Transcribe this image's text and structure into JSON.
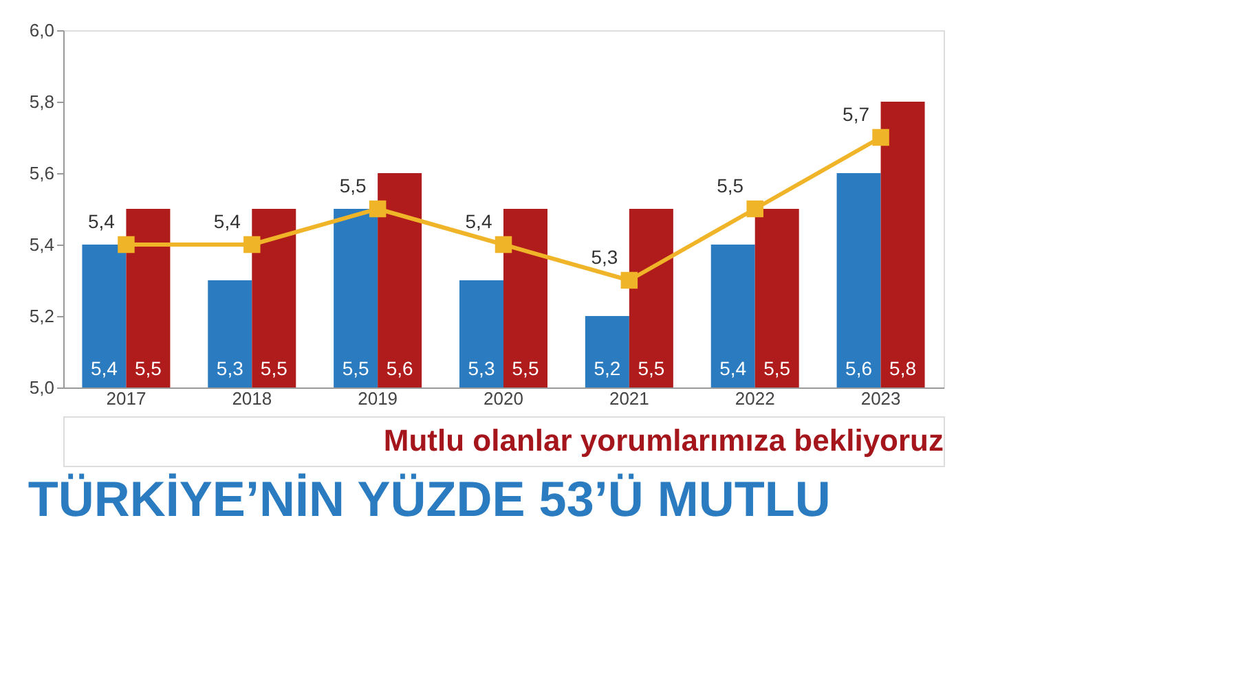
{
  "chart_data": {
    "type": "bar",
    "title": "TÜRKİYE’NİN YÜZDE 53’Ü MUTLU",
    "categories": [
      "2017",
      "2018",
      "2019",
      "2020",
      "2021",
      "2022",
      "2023"
    ],
    "series": [
      {
        "color": "#2a7bc0",
        "values": [
          5.4,
          5.3,
          5.5,
          5.3,
          5.2,
          5.4,
          5.6
        ],
        "value_labels": [
          "5,4",
          "5,3",
          "5,5",
          "5,3",
          "5,2",
          "5,4",
          "5,6"
        ]
      },
      {
        "color": "#b01c1c",
        "values": [
          5.5,
          5.5,
          5.6,
          5.5,
          5.5,
          5.5,
          5.8
        ],
        "value_labels": [
          "5,5",
          "5,5",
          "5,6",
          "5,5",
          "5,5",
          "5,5",
          "5,8"
        ]
      },
      {
        "type": "line",
        "color": "#f0b429",
        "marker": "square",
        "values": [
          5.4,
          5.4,
          5.5,
          5.4,
          5.3,
          5.5,
          5.7
        ],
        "value_labels": [
          "5,4",
          "5,4",
          "5,5",
          "5,4",
          "5,3",
          "5,5",
          "5,7"
        ]
      }
    ],
    "ylim": [
      5.0,
      6.0
    ],
    "yticks": [
      {
        "value": 5.0,
        "label": "5,0"
      },
      {
        "value": 5.2,
        "label": "5,2"
      },
      {
        "value": 5.4,
        "label": "5,4"
      },
      {
        "value": 5.6,
        "label": "5,6"
      },
      {
        "value": 5.8,
        "label": "5,8"
      },
      {
        "value": 6.0,
        "label": "6,0"
      }
    ],
    "annotations": [
      "Mutlu olanlar yorumlarımıza bekliyoruz"
    ]
  }
}
